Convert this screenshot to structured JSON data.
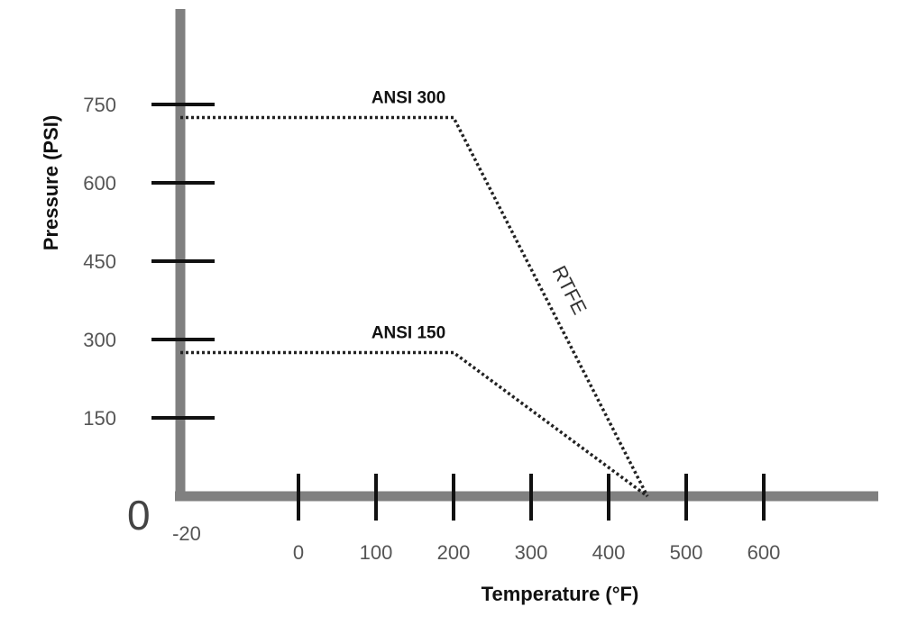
{
  "chart_data": {
    "type": "line",
    "title": "",
    "xlabel": "Temperature (°F)",
    "ylabel": "Pressure (PSI)",
    "origin_label": "0",
    "x_ticks": [
      "-20",
      "0",
      "100",
      "200",
      "300",
      "400",
      "500",
      "600"
    ],
    "y_ticks": [
      "150",
      "300",
      "450",
      "600",
      "750"
    ],
    "xlim": [
      -20,
      700
    ],
    "ylim": [
      0,
      800
    ],
    "grid": false,
    "series": [
      {
        "name": "ANSI 300",
        "x": [
          -20,
          200,
          450
        ],
        "y": [
          725,
          725,
          0
        ]
      },
      {
        "name": "ANSI 150",
        "x": [
          -20,
          200,
          450
        ],
        "y": [
          275,
          275,
          0
        ]
      }
    ],
    "annotations": [
      {
        "text": "RTFE",
        "attached_to": "ANSI 300"
      }
    ],
    "colors": {
      "axis": "#808080",
      "ticks": "#111111",
      "series": "#222222"
    }
  }
}
